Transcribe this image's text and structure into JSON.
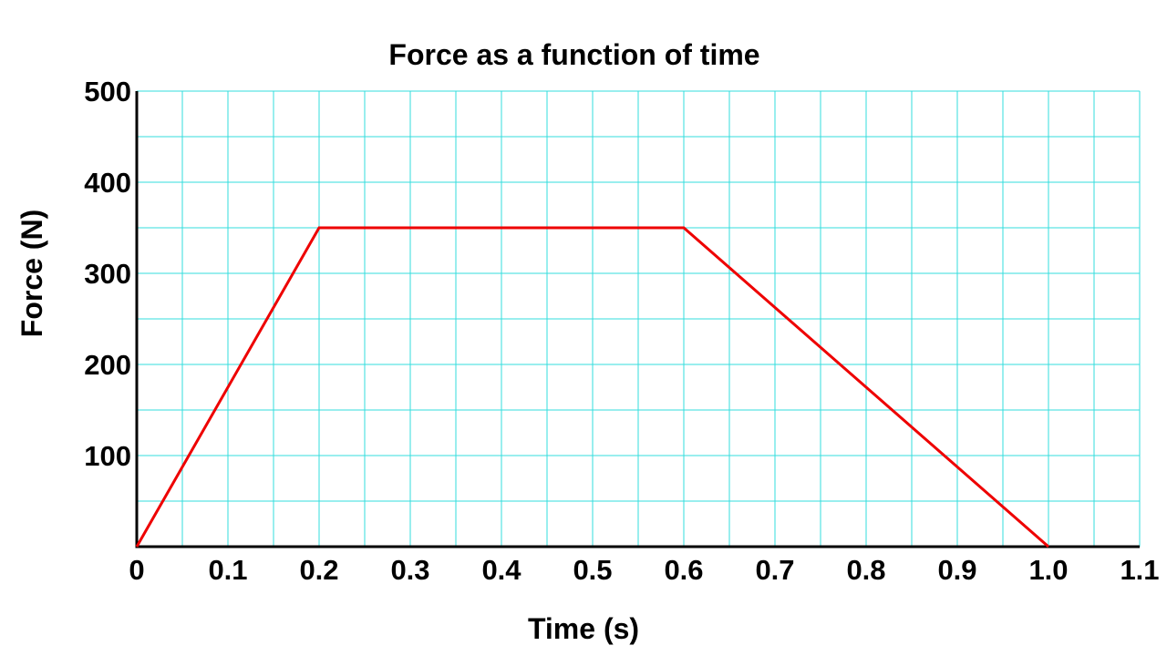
{
  "chart_data": {
    "type": "line",
    "title": "Force as a function of time",
    "xlabel": "Time (s)",
    "ylabel": "Force (N)",
    "xlim": [
      0,
      1.1
    ],
    "ylim": [
      0,
      500
    ],
    "x_ticks": [
      0,
      0.1,
      0.2,
      0.3,
      0.4,
      0.5,
      0.6,
      0.7,
      0.8,
      0.9,
      1.0,
      1.1
    ],
    "x_tick_labels": [
      "0",
      "0.1",
      "0.2",
      "0.3",
      "0.4",
      "0.5",
      "0.6",
      "0.7",
      "0.8",
      "0.9",
      "1.0",
      "1.1"
    ],
    "y_ticks": [
      100,
      200,
      300,
      400,
      500
    ],
    "y_tick_labels": [
      "100",
      "200",
      "300",
      "400",
      "500"
    ],
    "x_minor_step": 0.05,
    "y_minor_step": 50,
    "grid": true,
    "grid_color": "#33dddd",
    "series": [
      {
        "x": [
          0,
          0.2,
          0.6,
          1.0
        ],
        "y": [
          0,
          350,
          350,
          0
        ],
        "color": "#ee0000"
      }
    ]
  }
}
